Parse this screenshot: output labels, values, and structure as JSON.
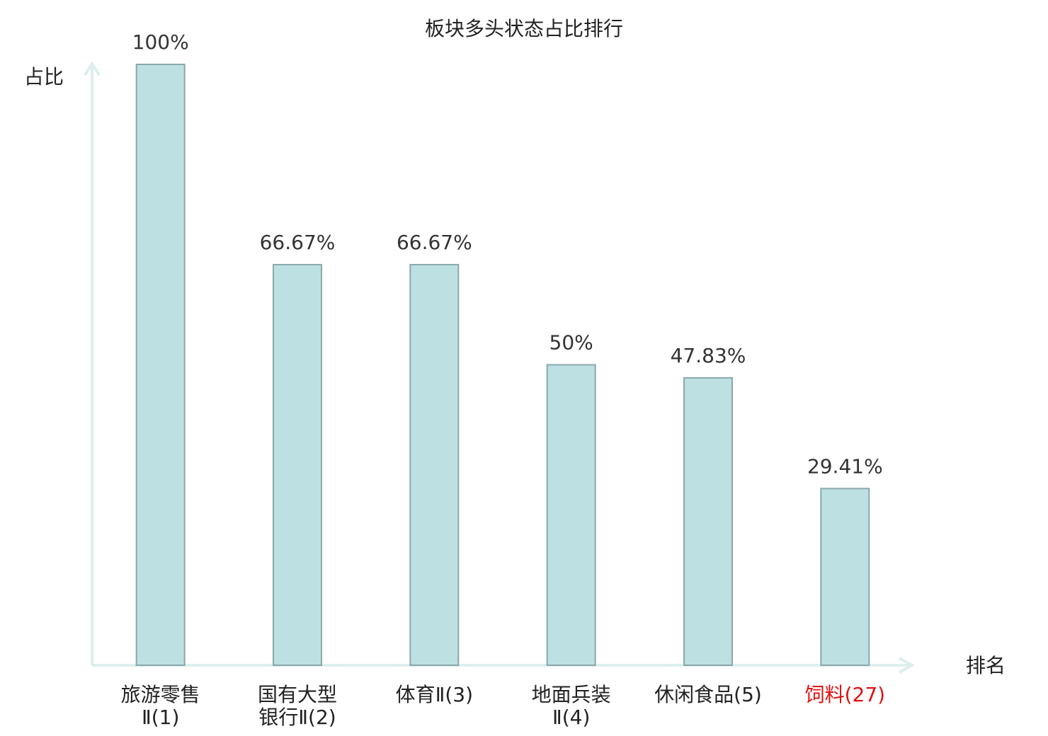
{
  "chart_data": {
    "type": "bar",
    "title": "板块多头状态占比排行",
    "y_label": "占比",
    "x_label": "排名",
    "categories": [
      [
        "旅游零售",
        "Ⅱ(1)"
      ],
      [
        "国有大型",
        "银行Ⅱ(2)"
      ],
      [
        "体育Ⅱ(3)"
      ],
      [
        "地面兵装",
        "Ⅱ(4)"
      ],
      [
        "休闲食品(5)"
      ],
      [
        "饲料(27)"
      ]
    ],
    "label_colors": [
      "#222222",
      "#222222",
      "#222222",
      "#222222",
      "#222222",
      "#e01010"
    ],
    "values": [
      100,
      66.67,
      66.67,
      50,
      47.83,
      29.41
    ],
    "value_labels": [
      "100%",
      "66.67%",
      "66.67%",
      "50%",
      "47.83%",
      "29.41%"
    ],
    "color": "#bde0e3",
    "ylim": [
      0,
      100
    ]
  }
}
